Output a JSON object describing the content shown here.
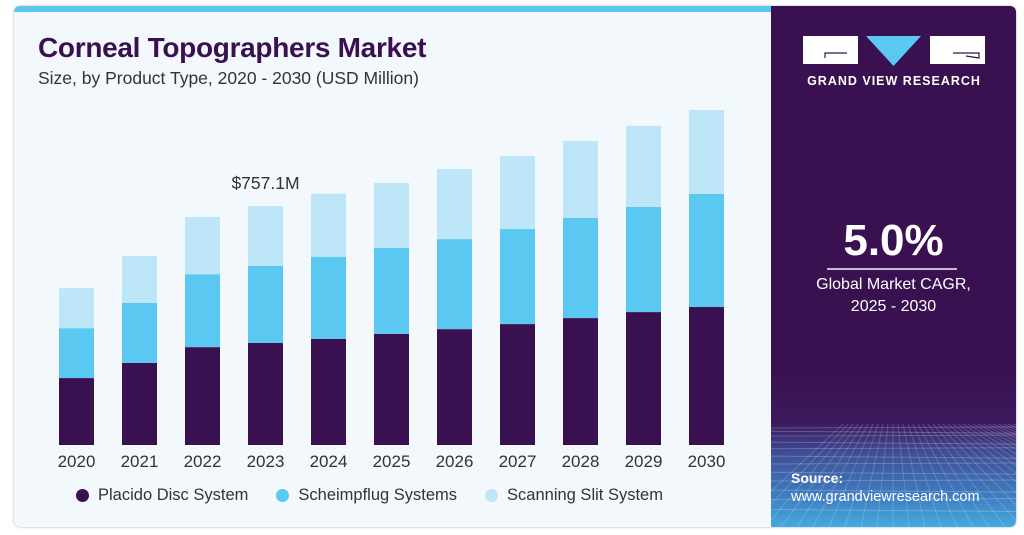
{
  "header": {
    "title": "Corneal Topographers Market",
    "subtitle": "Size, by Product Type, 2020 - 2030 (USD Million)"
  },
  "colors": {
    "accent": "#5bc8f2",
    "brand_purple": "#3a1150",
    "placido": "#3a1150",
    "scheimpflug": "#5bc8f2",
    "scanning": "#bde6f8"
  },
  "chart_data": {
    "type": "bar",
    "stacked": true,
    "title": "Corneal Topographers Market",
    "subtitle": "Size, by Product Type, 2020 - 2030 (USD Million)",
    "xlabel": "",
    "ylabel": "USD Million",
    "categories": [
      "2020",
      "2021",
      "2022",
      "2023",
      "2024",
      "2025",
      "2026",
      "2027",
      "2028",
      "2029",
      "2030"
    ],
    "series": [
      {
        "name": "Placido Disc System",
        "color": "#3a1150",
        "values": [
          212,
          260,
          310,
          323,
          336,
          352,
          367,
          383,
          402,
          421,
          437
        ]
      },
      {
        "name": "Scheimpflug Systems",
        "color": "#5bc8f2",
        "values": [
          158,
          190,
          231,
          244,
          260,
          272,
          285,
          301,
          317,
          333,
          358
        ]
      },
      {
        "name": "Scanning Slit System",
        "color": "#bde6f8",
        "values": [
          127,
          149,
          181,
          190,
          200,
          206,
          222,
          231,
          244,
          257,
          266
        ]
      }
    ],
    "ylim": [
      0,
      1061
    ],
    "grid": false,
    "legend_position": "bottom",
    "annotations": [
      {
        "category": "2023",
        "text": "$757.1M"
      }
    ]
  },
  "legend": [
    {
      "label": "Placido Disc System",
      "color": "#3a1150"
    },
    {
      "label": "Scheimpflug Systems",
      "color": "#5bc8f2"
    },
    {
      "label": "Scanning Slit System",
      "color": "#bde6f8"
    }
  ],
  "panel": {
    "logo_text": "GRAND VIEW RESEARCH",
    "logo_icon": "grand-view-research-logo",
    "cagr_value": "5.0%",
    "cagr_label_line1": "Global Market CAGR,",
    "cagr_label_line2": "2025 - 2030",
    "source_label": "Source:",
    "source_url": "www.grandviewresearch.com"
  }
}
